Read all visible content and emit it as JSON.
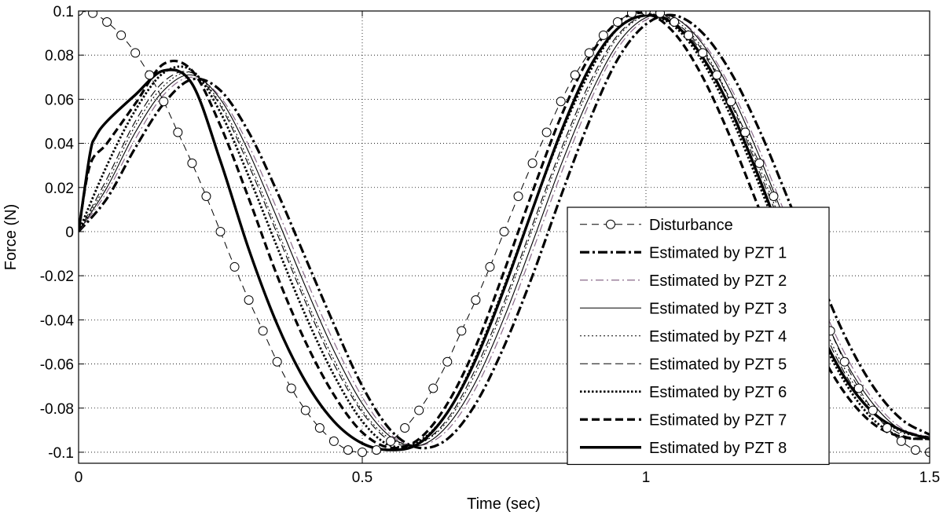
{
  "chart_data": {
    "type": "line",
    "title": "",
    "xlabel": "Time (sec)",
    "ylabel": "Force (N)",
    "xlim": [
      0,
      1.5
    ],
    "ylim": [
      -0.105,
      0.1
    ],
    "grid": true,
    "legend_position": "bottom-right",
    "x_ticks": [
      0,
      0.5,
      1,
      1.5
    ],
    "x_tick_labels": [
      "0",
      "0.5",
      "1",
      "1.5"
    ],
    "y_ticks": [
      0.1,
      0.08,
      0.06,
      0.04,
      0.02,
      0,
      -0.02,
      -0.04,
      -0.06,
      -0.08,
      -0.1
    ],
    "y_tick_labels": [
      "0.1",
      "0.08",
      "0.06",
      "0.04",
      "0.02",
      "0",
      "-0.02",
      "-0.04",
      "-0.06",
      "-0.08",
      "-0.1"
    ],
    "series": [
      {
        "name": "Disturbance",
        "style": "dashed-circle",
        "color": "#000000",
        "x": [
          0,
          0.025,
          0.05,
          0.075,
          0.1,
          0.125,
          0.15,
          0.175,
          0.2,
          0.225,
          0.25,
          0.275,
          0.3,
          0.325,
          0.35,
          0.375,
          0.4,
          0.425,
          0.45,
          0.475,
          0.5,
          0.525,
          0.55,
          0.575,
          0.6,
          0.625,
          0.65,
          0.675,
          0.7,
          0.725,
          0.75,
          0.775,
          0.8,
          0.825,
          0.85,
          0.875,
          0.9,
          0.925,
          0.95,
          0.975,
          1,
          1.025,
          1.05,
          1.075,
          1.1,
          1.125,
          1.15,
          1.175,
          1.2,
          1.225,
          1.25,
          1.275,
          1.3,
          1.325,
          1.35,
          1.375,
          1.4,
          1.425,
          1.45,
          1.475,
          1.5
        ],
        "y": [
          0.1,
          0.099,
          0.095,
          0.089,
          0.081,
          0.071,
          0.059,
          0.045,
          0.031,
          0.016,
          0,
          -0.016,
          -0.031,
          -0.045,
          -0.059,
          -0.071,
          -0.081,
          -0.089,
          -0.095,
          -0.099,
          -0.1,
          -0.099,
          -0.095,
          -0.089,
          -0.081,
          -0.071,
          -0.059,
          -0.045,
          -0.031,
          -0.016,
          0,
          0.016,
          0.031,
          0.045,
          0.059,
          0.071,
          0.081,
          0.089,
          0.095,
          0.099,
          0.1,
          0.099,
          0.095,
          0.089,
          0.081,
          0.071,
          0.059,
          0.045,
          0.031,
          0.016,
          0,
          -0.016,
          -0.031,
          -0.045,
          -0.059,
          -0.071,
          -0.081,
          -0.089,
          -0.095,
          -0.099,
          -0.1
        ]
      },
      {
        "name": "Estimated by PZT 1",
        "style": "thick-dashdot",
        "color": "#000000",
        "x": [
          0,
          0.05,
          0.1,
          0.15,
          0.2,
          0.25,
          0.3,
          0.35,
          0.4,
          0.45,
          0.5,
          0.55,
          0.6,
          0.65,
          0.7,
          0.75,
          0.8,
          0.85,
          0.9,
          0.95,
          1,
          1.05,
          1.1,
          1.15,
          1.2,
          1.25,
          1.3,
          1.35,
          1.4,
          1.45,
          1.5
        ],
        "y": [
          0,
          0.015,
          0.038,
          0.058,
          0.069,
          0.064,
          0.045,
          0.018,
          -0.012,
          -0.042,
          -0.07,
          -0.09,
          -0.098,
          -0.094,
          -0.078,
          -0.052,
          -0.02,
          0.016,
          0.05,
          0.078,
          0.094,
          0.098,
          0.09,
          0.072,
          0.046,
          0.015,
          -0.017,
          -0.047,
          -0.07,
          -0.085,
          -0.092
        ]
      },
      {
        "name": "Estimated by PZT 2",
        "style": "thin-dashdot",
        "color": "#8a6a8a",
        "x": [
          0,
          0.05,
          0.1,
          0.15,
          0.2,
          0.25,
          0.3,
          0.35,
          0.4,
          0.45,
          0.5,
          0.55,
          0.6,
          0.65,
          0.7,
          0.75,
          0.8,
          0.85,
          0.9,
          0.95,
          1,
          1.05,
          1.1,
          1.15,
          1.2,
          1.25,
          1.3,
          1.35,
          1.4,
          1.45,
          1.5
        ],
        "y": [
          0,
          0.018,
          0.042,
          0.062,
          0.07,
          0.061,
          0.039,
          0.01,
          -0.021,
          -0.05,
          -0.075,
          -0.092,
          -0.097,
          -0.09,
          -0.071,
          -0.043,
          -0.009,
          0.026,
          0.058,
          0.083,
          0.096,
          0.097,
          0.086,
          0.065,
          0.037,
          0.005,
          -0.027,
          -0.055,
          -0.076,
          -0.089,
          -0.093
        ]
      },
      {
        "name": "Estimated by PZT 3",
        "style": "thin-solid",
        "color": "#000000",
        "x": [
          0,
          0.05,
          0.1,
          0.15,
          0.2,
          0.25,
          0.3,
          0.35,
          0.4,
          0.45,
          0.5,
          0.55,
          0.6,
          0.65,
          0.7,
          0.75,
          0.8,
          0.85,
          0.9,
          0.95,
          1,
          1.05,
          1.1,
          1.15,
          1.2,
          1.25,
          1.3,
          1.35,
          1.4,
          1.45,
          1.5
        ],
        "y": [
          0,
          0.02,
          0.045,
          0.064,
          0.071,
          0.06,
          0.036,
          0.006,
          -0.025,
          -0.054,
          -0.078,
          -0.093,
          -0.097,
          -0.088,
          -0.068,
          -0.039,
          -0.005,
          0.03,
          0.061,
          0.085,
          0.097,
          0.097,
          0.085,
          0.063,
          0.034,
          0.002,
          -0.03,
          -0.058,
          -0.078,
          -0.09,
          -0.093
        ]
      },
      {
        "name": "Estimated by PZT 4",
        "style": "thin-dotted",
        "color": "#000000",
        "x": [
          0,
          0.05,
          0.1,
          0.15,
          0.2,
          0.25,
          0.3,
          0.35,
          0.4,
          0.45,
          0.5,
          0.55,
          0.6,
          0.65,
          0.7,
          0.75,
          0.8,
          0.85,
          0.9,
          0.95,
          1,
          1.05,
          1.1,
          1.15,
          1.2,
          1.25,
          1.3,
          1.35,
          1.4,
          1.45,
          1.5
        ],
        "y": [
          0,
          0.022,
          0.048,
          0.066,
          0.072,
          0.058,
          0.032,
          0.001,
          -0.03,
          -0.058,
          -0.081,
          -0.094,
          -0.096,
          -0.086,
          -0.064,
          -0.034,
          0.001,
          0.035,
          0.065,
          0.088,
          0.098,
          0.096,
          0.083,
          0.059,
          0.029,
          -0.003,
          -0.035,
          -0.062,
          -0.081,
          -0.091,
          -0.093
        ]
      },
      {
        "name": "Estimated by PZT 5",
        "style": "thin-dashed",
        "color": "#000000",
        "x": [
          0,
          0.05,
          0.1,
          0.15,
          0.2,
          0.25,
          0.3,
          0.35,
          0.4,
          0.45,
          0.5,
          0.55,
          0.6,
          0.65,
          0.7,
          0.75,
          0.8,
          0.85,
          0.9,
          0.95,
          1,
          1.05,
          1.1,
          1.15,
          1.2,
          1.25,
          1.3,
          1.35,
          1.4,
          1.45,
          1.5
        ],
        "y": [
          0,
          0.024,
          0.05,
          0.068,
          0.072,
          0.057,
          0.03,
          -0.001,
          -0.032,
          -0.06,
          -0.082,
          -0.095,
          -0.096,
          -0.085,
          -0.062,
          -0.032,
          0.003,
          0.037,
          0.067,
          0.089,
          0.098,
          0.095,
          0.082,
          0.058,
          0.027,
          -0.005,
          -0.037,
          -0.064,
          -0.082,
          -0.092,
          -0.094
        ]
      },
      {
        "name": "Estimated by PZT 6",
        "style": "thick-dotted",
        "color": "#000000",
        "x": [
          0,
          0.05,
          0.1,
          0.15,
          0.2,
          0.25,
          0.3,
          0.35,
          0.4,
          0.45,
          0.5,
          0.55,
          0.6,
          0.65,
          0.7,
          0.75,
          0.8,
          0.85,
          0.9,
          0.95,
          1,
          1.05,
          1.1,
          1.15,
          1.2,
          1.25,
          1.3,
          1.35,
          1.4,
          1.45,
          1.5
        ],
        "y": [
          0,
          0.03,
          0.055,
          0.072,
          0.073,
          0.054,
          0.025,
          -0.007,
          -0.038,
          -0.065,
          -0.086,
          -0.097,
          -0.095,
          -0.082,
          -0.057,
          -0.025,
          0.01,
          0.044,
          0.072,
          0.092,
          0.098,
          0.093,
          0.077,
          0.052,
          0.021,
          -0.012,
          -0.043,
          -0.068,
          -0.085,
          -0.093,
          -0.094
        ]
      },
      {
        "name": "Estimated by PZT 7",
        "style": "thick-dashed",
        "color": "#000000",
        "x": [
          0,
          0.02,
          0.05,
          0.1,
          0.15,
          0.2,
          0.25,
          0.3,
          0.35,
          0.4,
          0.45,
          0.5,
          0.55,
          0.6,
          0.65,
          0.7,
          0.75,
          0.8,
          0.85,
          0.9,
          0.95,
          1,
          1.05,
          1.1,
          1.15,
          1.2,
          1.25,
          1.3,
          1.35,
          1.4,
          1.45,
          1.5
        ],
        "y": [
          0,
          0.03,
          0.04,
          0.058,
          0.076,
          0.073,
          0.048,
          0.015,
          -0.02,
          -0.05,
          -0.074,
          -0.091,
          -0.098,
          -0.094,
          -0.078,
          -0.052,
          -0.018,
          0.018,
          0.052,
          0.079,
          0.095,
          0.099,
          0.09,
          0.07,
          0.042,
          0.01,
          -0.022,
          -0.051,
          -0.073,
          -0.087,
          -0.093,
          -0.094
        ]
      },
      {
        "name": "Estimated by PZT 8",
        "style": "thick-solid",
        "color": "#000000",
        "x": [
          0,
          0.02,
          0.03,
          0.05,
          0.1,
          0.15,
          0.2,
          0.25,
          0.3,
          0.35,
          0.4,
          0.45,
          0.5,
          0.55,
          0.6,
          0.65,
          0.7,
          0.75,
          0.8,
          0.85,
          0.9,
          0.95,
          1,
          1.05,
          1.1,
          1.15,
          1.2,
          1.25,
          1.3,
          1.35,
          1.4,
          1.45,
          1.5
        ],
        "y": [
          0,
          0.035,
          0.043,
          0.05,
          0.062,
          0.073,
          0.067,
          0.032,
          -0.008,
          -0.042,
          -0.068,
          -0.086,
          -0.096,
          -0.099,
          -0.096,
          -0.082,
          -0.058,
          -0.026,
          0.01,
          0.045,
          0.074,
          0.092,
          0.098,
          0.094,
          0.079,
          0.055,
          0.024,
          -0.01,
          -0.041,
          -0.066,
          -0.082,
          -0.09,
          -0.094
        ]
      }
    ]
  }
}
